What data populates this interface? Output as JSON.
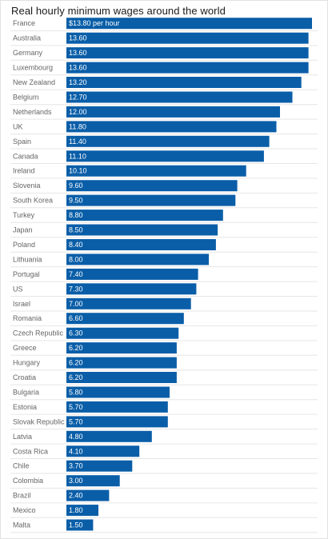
{
  "chart_data": {
    "type": "bar",
    "orientation": "horizontal",
    "title": "Real hourly minimum wages around the world",
    "bar_color": "#0a5ea8",
    "categories": [
      "France",
      "Australia",
      "Germany",
      "Luxembourg",
      "New Zealand",
      "Belgium",
      "Netherlands",
      "UK",
      "Spain",
      "Canada",
      "Ireland",
      "Slovenia",
      "South Korea",
      "Turkey",
      "Japan",
      "Poland",
      "Lithuania",
      "Portugal",
      "US",
      "Israel",
      "Romania",
      "Czech Republic",
      "Greece",
      "Hungary",
      "Croatia",
      "Bulgaria",
      "Estonia",
      "Slovak Republic",
      "Latvia",
      "Costa Rica",
      "Chile",
      "Colombia",
      "Brazil",
      "Mexico",
      "Malta"
    ],
    "values": [
      13.8,
      13.6,
      13.6,
      13.6,
      13.2,
      12.7,
      12.0,
      11.8,
      11.4,
      11.1,
      10.1,
      9.6,
      9.5,
      8.8,
      8.5,
      8.4,
      8.0,
      7.4,
      7.3,
      7.0,
      6.6,
      6.3,
      6.2,
      6.2,
      6.2,
      5.8,
      5.7,
      5.7,
      4.8,
      4.1,
      3.7,
      3.0,
      2.4,
      1.8,
      1.5
    ],
    "value_labels": [
      "$13.80 per hour",
      "13.60",
      "13.60",
      "13.60",
      "13.20",
      "12.70",
      "12.00",
      "11.80",
      "11.40",
      "11.10",
      "10.10",
      "9.60",
      "9.50",
      "8.80",
      "8.50",
      "8.40",
      "8.00",
      "7.40",
      "7.30",
      "7.00",
      "6.60",
      "6.30",
      "6.20",
      "6.20",
      "6.20",
      "5.80",
      "5.70",
      "5.70",
      "4.80",
      "4.10",
      "3.70",
      "3.00",
      "2.40",
      "1.80",
      "1.50"
    ],
    "xlim": [
      0,
      13.8
    ],
    "grid": false,
    "legend": "none"
  }
}
